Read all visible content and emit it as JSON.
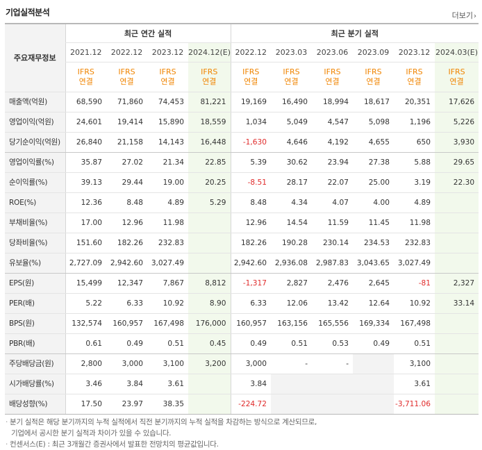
{
  "header": {
    "title": "기업실적분석",
    "more_label": "더보기"
  },
  "table": {
    "row_header_label": "주요재무정보",
    "group_annual": "최근 연간 실적",
    "group_quarter": "최근 분기 실적",
    "periods": [
      "2021.12",
      "2022.12",
      "2023.12",
      "2024.12(E)",
      "2022.12",
      "2023.03",
      "2023.06",
      "2023.09",
      "2023.12",
      "2024.03(E)"
    ],
    "basis_top": "IFRS",
    "basis_bottom": "연결",
    "rows": [
      {
        "label": "매출액(억원)",
        "values": [
          "68,590",
          "71,860",
          "74,453",
          "81,221",
          "19,169",
          "16,490",
          "18,994",
          "18,617",
          "20,351",
          "17,626"
        ]
      },
      {
        "label": "영업이익(억원)",
        "values": [
          "24,601",
          "19,414",
          "15,890",
          "18,559",
          "1,034",
          "5,049",
          "4,547",
          "5,098",
          "1,196",
          "5,226"
        ]
      },
      {
        "label": "당기순이익(억원)",
        "values": [
          "26,840",
          "21,158",
          "14,143",
          "16,448",
          "-1,630",
          "4,646",
          "4,192",
          "4,655",
          "650",
          "3,930"
        ]
      },
      {
        "label": "영업이익률(%)",
        "values": [
          "35.87",
          "27.02",
          "21.34",
          "22.85",
          "5.39",
          "30.62",
          "23.94",
          "27.38",
          "5.88",
          "29.65"
        ]
      },
      {
        "label": "순이익률(%)",
        "values": [
          "39.13",
          "29.44",
          "19.00",
          "20.25",
          "-8.51",
          "28.17",
          "22.07",
          "25.00",
          "3.19",
          "22.30"
        ]
      },
      {
        "label": "ROE(%)",
        "values": [
          "12.36",
          "8.48",
          "4.89",
          "5.29",
          "8.48",
          "4.34",
          "4.07",
          "4.00",
          "4.89",
          ""
        ]
      },
      {
        "label": "부채비율(%)",
        "values": [
          "17.00",
          "12.96",
          "11.98",
          "",
          "12.96",
          "14.54",
          "11.59",
          "11.45",
          "11.98",
          ""
        ]
      },
      {
        "label": "당좌비율(%)",
        "values": [
          "151.60",
          "182.26",
          "232.83",
          "",
          "182.26",
          "190.28",
          "230.14",
          "234.53",
          "232.83",
          ""
        ]
      },
      {
        "label": "유보율(%)",
        "values": [
          "2,727.09",
          "2,942.60",
          "3,027.49",
          "",
          "2,942.60",
          "2,936.08",
          "2,987.83",
          "3,043.65",
          "3,027.49",
          ""
        ]
      },
      {
        "label": "EPS(원)",
        "values": [
          "15,499",
          "12,347",
          "7,867",
          "8,812",
          "-1,317",
          "2,827",
          "2,476",
          "2,645",
          "-81",
          "2,327"
        ]
      },
      {
        "label": "PER(배)",
        "values": [
          "5.22",
          "6.33",
          "10.92",
          "8.90",
          "6.33",
          "12.06",
          "13.42",
          "12.64",
          "10.92",
          "33.14"
        ]
      },
      {
        "label": "BPS(원)",
        "values": [
          "132,574",
          "160,957",
          "167,498",
          "176,000",
          "160,957",
          "163,156",
          "165,556",
          "169,334",
          "167,498",
          ""
        ]
      },
      {
        "label": "PBR(배)",
        "values": [
          "0.61",
          "0.49",
          "0.51",
          "0.45",
          "0.49",
          "0.51",
          "0.53",
          "0.49",
          "0.51",
          ""
        ]
      },
      {
        "label": "주당배당금(원)",
        "values": [
          "2,800",
          "3,000",
          "3,100",
          "3,200",
          "3,000",
          "-",
          "-",
          "",
          "3,100",
          ""
        ]
      },
      {
        "label": "시가배당률(%)",
        "values": [
          "3.46",
          "3.84",
          "3.61",
          "",
          "3.84",
          "",
          "",
          "",
          "3.61",
          ""
        ]
      },
      {
        "label": "배당성향(%)",
        "values": [
          "17.50",
          "23.97",
          "38.35",
          "",
          "-224.72",
          "",
          "",
          "",
          "-3,711.06",
          ""
        ]
      }
    ]
  },
  "notes": [
    "분기 실적은 해당 분기까지의 누적 실적에서 직전 분기까지의 누적 실적을 차감하는 방식으로 계산되므로,",
    "기업에서 공시한 분기 실적과 차이가 있을 수 있습니다.",
    "컨센서스(E) : 최근 3개월간 증권사에서 발표한 전망치의 평균값입니다."
  ]
}
